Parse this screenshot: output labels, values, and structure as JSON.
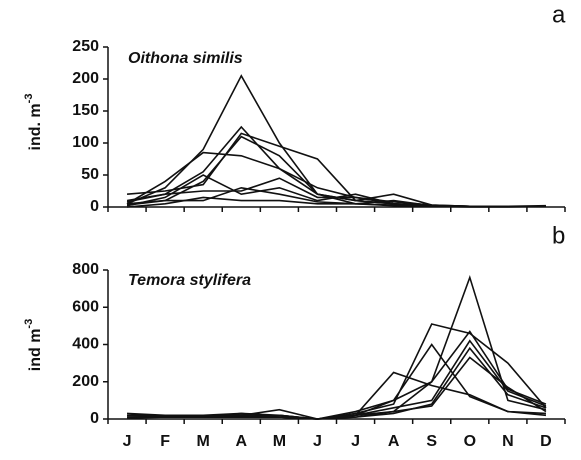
{
  "chart_data": [
    {
      "type": "line",
      "panel_label": "a",
      "title": "Oithona similis",
      "ylabel": "ind. m",
      "ylabel_sup": "-3",
      "color": "#111111",
      "ylim": [
        0,
        250
      ],
      "yticks": [
        0,
        50,
        100,
        150,
        200,
        250
      ],
      "series": [
        {
          "values": [
            5,
            30,
            90,
            205,
            100,
            20,
            10,
            5,
            2,
            1,
            1,
            1
          ]
        },
        {
          "values": [
            10,
            20,
            55,
            125,
            60,
            20,
            10,
            5,
            2,
            1,
            1,
            1
          ]
        },
        {
          "values": [
            5,
            40,
            85,
            80,
            60,
            30,
            15,
            8,
            3,
            1,
            1,
            1
          ]
        },
        {
          "values": [
            20,
            25,
            35,
            115,
            95,
            75,
            10,
            20,
            3,
            1,
            1,
            2
          ]
        },
        {
          "values": [
            5,
            10,
            40,
            110,
            80,
            20,
            5,
            10,
            2,
            1,
            1,
            1
          ]
        },
        {
          "values": [
            2,
            15,
            50,
            20,
            30,
            10,
            20,
            5,
            2,
            1,
            1,
            1
          ]
        },
        {
          "values": [
            8,
            20,
            25,
            25,
            45,
            15,
            15,
            5,
            1,
            1,
            1,
            1
          ]
        },
        {
          "values": [
            3,
            10,
            10,
            30,
            20,
            8,
            5,
            2,
            1,
            1,
            1,
            1
          ]
        },
        {
          "values": [
            0,
            5,
            15,
            10,
            10,
            5,
            5,
            3,
            1,
            0,
            0,
            1
          ]
        }
      ]
    },
    {
      "type": "line",
      "panel_label": "b",
      "title": "Temora stylifera",
      "ylabel": "ind m",
      "ylabel_sup": "-3",
      "color": "#111111",
      "ylim": [
        0,
        800
      ],
      "yticks": [
        0,
        200,
        400,
        600,
        800
      ],
      "categories": [
        "J",
        "F",
        "M",
        "A",
        "M",
        "J",
        "J",
        "A",
        "S",
        "O",
        "N",
        "D"
      ],
      "series": [
        {
          "values": [
            20,
            20,
            20,
            15,
            20,
            0,
            20,
            100,
            200,
            760,
            100,
            50
          ]
        },
        {
          "values": [
            30,
            20,
            20,
            20,
            50,
            0,
            20,
            250,
            180,
            130,
            40,
            20
          ]
        },
        {
          "values": [
            20,
            15,
            20,
            30,
            20,
            0,
            40,
            100,
            400,
            120,
            40,
            30
          ]
        },
        {
          "values": [
            10,
            10,
            10,
            30,
            10,
            0,
            30,
            80,
            510,
            460,
            300,
            60
          ]
        },
        {
          "values": [
            10,
            10,
            15,
            10,
            20,
            0,
            10,
            40,
            200,
            470,
            160,
            80
          ]
        },
        {
          "values": [
            20,
            15,
            15,
            10,
            10,
            0,
            20,
            60,
            100,
            420,
            150,
            70
          ]
        },
        {
          "values": [
            10,
            10,
            10,
            10,
            10,
            0,
            10,
            30,
            80,
            380,
            130,
            60
          ]
        },
        {
          "values": [
            5,
            10,
            10,
            20,
            10,
            0,
            20,
            40,
            70,
            330,
            170,
            40
          ]
        }
      ]
    }
  ]
}
